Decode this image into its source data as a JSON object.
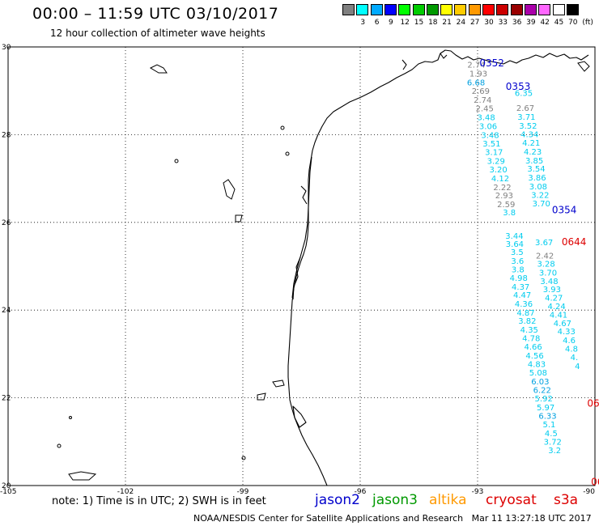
{
  "header": {
    "title": "00:00 – 11:59 UTC 03/10/2017",
    "subtitle": "12 hour collection of altimeter wave heights"
  },
  "legend": {
    "unit": "(ft)",
    "bins": [
      {
        "label": "",
        "color": "#808080"
      },
      {
        "label": "3",
        "color": "#00ffff"
      },
      {
        "label": "6",
        "color": "#00aaff"
      },
      {
        "label": "9",
        "color": "#0000ff"
      },
      {
        "label": "12",
        "color": "#00ff00"
      },
      {
        "label": "15",
        "color": "#00cc00"
      },
      {
        "label": "18",
        "color": "#009900"
      },
      {
        "label": "21",
        "color": "#ffff00"
      },
      {
        "label": "24",
        "color": "#ffcc00"
      },
      {
        "label": "27",
        "color": "#ff9900"
      },
      {
        "label": "30",
        "color": "#ff0000"
      },
      {
        "label": "33",
        "color": "#cc0000"
      },
      {
        "label": "36",
        "color": "#990000"
      },
      {
        "label": "39",
        "color": "#aa00aa"
      },
      {
        "label": "42",
        "color": "#ff66ff"
      },
      {
        "label": "45",
        "color": "#ffffff"
      },
      {
        "label": "70",
        "color": "#000000"
      }
    ]
  },
  "map": {
    "lon_range": [
      -105,
      -90
    ],
    "lat_range": [
      20,
      30
    ],
    "lon_ticks": [
      "-105",
      "-102",
      "-99",
      "-96",
      "-93",
      "-90"
    ],
    "lat_ticks": [
      "30",
      "28",
      "26",
      "24",
      "22",
      "20"
    ],
    "pass_labels": [
      {
        "text": "0352",
        "lon": -92.95,
        "lat": 29.63,
        "color": "#0000cc"
      },
      {
        "text": "0353",
        "lon": -92.28,
        "lat": 29.1,
        "color": "#0000cc"
      },
      {
        "text": "0354",
        "lon": -91.1,
        "lat": 26.28,
        "color": "#0000cc"
      },
      {
        "text": "0644",
        "lon": -90.85,
        "lat": 25.55,
        "color": "#dd0000"
      },
      {
        "text": "064",
        "lon": -90.2,
        "lat": 21.87,
        "color": "#dd0000"
      },
      {
        "text": "06",
        "lon": -90.1,
        "lat": 20.08,
        "color": "#dd0000"
      }
    ],
    "tracks": [
      {
        "name": "track-1",
        "points": [
          {
            "text": "2.74",
            "lon": -93.03,
            "lat": 29.6,
            "color": "#808080"
          },
          {
            "text": "1.93",
            "lon": -92.98,
            "lat": 29.4,
            "color": "#808080"
          },
          {
            "text": "6.68",
            "lon": -93.04,
            "lat": 29.2,
            "color": "#00a0e0"
          },
          {
            "text": "2.69",
            "lon": -92.92,
            "lat": 29.0,
            "color": "#808080"
          },
          {
            "text": "2.74",
            "lon": -92.87,
            "lat": 28.8,
            "color": "#808080"
          },
          {
            "text": "2.45",
            "lon": -92.82,
            "lat": 28.61,
            "color": "#808080"
          },
          {
            "text": "3.48",
            "lon": -92.78,
            "lat": 28.4,
            "color": "#00ccee"
          },
          {
            "text": "3.06",
            "lon": -92.73,
            "lat": 28.2,
            "color": "#00ccee"
          },
          {
            "text": "3.48",
            "lon": -92.68,
            "lat": 28.0,
            "color": "#00ccee"
          },
          {
            "text": "3.51",
            "lon": -92.64,
            "lat": 27.8,
            "color": "#00ccee"
          },
          {
            "text": "3.17",
            "lon": -92.58,
            "lat": 27.61,
            "color": "#00ccee"
          },
          {
            "text": "3.29",
            "lon": -92.53,
            "lat": 27.41,
            "color": "#00ccee"
          },
          {
            "text": "3.20",
            "lon": -92.47,
            "lat": 27.21,
            "color": "#00ccee"
          },
          {
            "text": "4.12",
            "lon": -92.42,
            "lat": 27.01,
            "color": "#00ccee"
          },
          {
            "text": "2.22",
            "lon": -92.37,
            "lat": 26.81,
            "color": "#808080"
          },
          {
            "text": "2.93",
            "lon": -92.32,
            "lat": 26.62,
            "color": "#808080"
          },
          {
            "text": "2.59",
            "lon": -92.27,
            "lat": 26.42,
            "color": "#808080"
          },
          {
            "text": "3.8",
            "lon": -92.19,
            "lat": 26.24,
            "color": "#00ccee"
          },
          {
            "text": "3.44",
            "lon": -92.06,
            "lat": 25.7,
            "color": "#00ccee"
          },
          {
            "text": "3.64",
            "lon": -92.05,
            "lat": 25.52,
            "color": "#00ccee"
          },
          {
            "text": "3.5",
            "lon": -91.99,
            "lat": 25.33,
            "color": "#00ccee"
          },
          {
            "text": "3.6",
            "lon": -91.98,
            "lat": 25.13,
            "color": "#00ccee"
          },
          {
            "text": "3.8",
            "lon": -91.97,
            "lat": 24.94,
            "color": "#00ccee"
          },
          {
            "text": "4.98",
            "lon": -91.95,
            "lat": 24.74,
            "color": "#00ccee"
          },
          {
            "text": "4.37",
            "lon": -91.9,
            "lat": 24.54,
            "color": "#00ccee"
          },
          {
            "text": "4.47",
            "lon": -91.86,
            "lat": 24.35,
            "color": "#00ccee"
          },
          {
            "text": "4.36",
            "lon": -91.82,
            "lat": 24.15,
            "color": "#00ccee"
          },
          {
            "text": "4.87",
            "lon": -91.77,
            "lat": 23.95,
            "color": "#00ccee"
          },
          {
            "text": "3.82",
            "lon": -91.73,
            "lat": 23.76,
            "color": "#00ccee"
          },
          {
            "text": "4.35",
            "lon": -91.68,
            "lat": 23.56,
            "color": "#00ccee"
          },
          {
            "text": "4.78",
            "lon": -91.63,
            "lat": 23.37,
            "color": "#00ccee"
          },
          {
            "text": "4.66",
            "lon": -91.58,
            "lat": 23.17,
            "color": "#00ccee"
          },
          {
            "text": "4.56",
            "lon": -91.54,
            "lat": 22.97,
            "color": "#00ccee"
          },
          {
            "text": "4.83",
            "lon": -91.49,
            "lat": 22.78,
            "color": "#00ccee"
          },
          {
            "text": "5.08",
            "lon": -91.45,
            "lat": 22.58,
            "color": "#00ccee"
          },
          {
            "text": "6.03",
            "lon": -91.4,
            "lat": 22.38,
            "color": "#00a0e0"
          },
          {
            "text": "6.22",
            "lon": -91.35,
            "lat": 22.19,
            "color": "#00a0e0"
          },
          {
            "text": "5.92",
            "lon": -91.31,
            "lat": 21.99,
            "color": "#00ccee"
          },
          {
            "text": "5.97",
            "lon": -91.26,
            "lat": 21.79,
            "color": "#00ccee"
          },
          {
            "text": "6.33",
            "lon": -91.21,
            "lat": 21.6,
            "color": "#00a0e0"
          },
          {
            "text": "5.1",
            "lon": -91.17,
            "lat": 21.4,
            "color": "#00ccee"
          },
          {
            "text": "4.5",
            "lon": -91.12,
            "lat": 21.2,
            "color": "#00ccee"
          },
          {
            "text": "3.72",
            "lon": -91.08,
            "lat": 21.01,
            "color": "#00ccee"
          },
          {
            "text": "3.2",
            "lon": -91.03,
            "lat": 20.81,
            "color": "#00ccee"
          }
        ]
      },
      {
        "name": "track-2",
        "points": [
          {
            "text": "6.35",
            "lon": -91.82,
            "lat": 28.96,
            "color": "#00ccee"
          },
          {
            "text": "2.67",
            "lon": -91.78,
            "lat": 28.62,
            "color": "#808080"
          },
          {
            "text": "3.71",
            "lon": -91.75,
            "lat": 28.41,
            "color": "#00ccee"
          },
          {
            "text": "3.52",
            "lon": -91.71,
            "lat": 28.21,
            "color": "#00ccee"
          },
          {
            "text": "4.34",
            "lon": -91.67,
            "lat": 28.02,
            "color": "#00ccee"
          },
          {
            "text": "4.21",
            "lon": -91.63,
            "lat": 27.82,
            "color": "#00ccee"
          },
          {
            "text": "4.23",
            "lon": -91.59,
            "lat": 27.62,
            "color": "#00ccee"
          },
          {
            "text": "3.85",
            "lon": -91.55,
            "lat": 27.42,
            "color": "#00ccee"
          },
          {
            "text": "3.54",
            "lon": -91.5,
            "lat": 27.23,
            "color": "#00ccee"
          },
          {
            "text": "3.86",
            "lon": -91.48,
            "lat": 27.03,
            "color": "#00ccee"
          },
          {
            "text": "3.08",
            "lon": -91.45,
            "lat": 26.83,
            "color": "#00ccee"
          },
          {
            "text": "3.22",
            "lon": -91.4,
            "lat": 26.63,
            "color": "#00ccee"
          },
          {
            "text": "3.70",
            "lon": -91.37,
            "lat": 26.44,
            "color": "#00ccee"
          },
          {
            "text": "3.67",
            "lon": -91.3,
            "lat": 25.55,
            "color": "#00ccee"
          },
          {
            "text": "2.42",
            "lon": -91.28,
            "lat": 25.25,
            "color": "#808080"
          },
          {
            "text": "3.28",
            "lon": -91.25,
            "lat": 25.06,
            "color": "#00ccee"
          },
          {
            "text": "3.70",
            "lon": -91.2,
            "lat": 24.86,
            "color": "#00ccee"
          },
          {
            "text": "3.48",
            "lon": -91.17,
            "lat": 24.67,
            "color": "#00ccee"
          },
          {
            "text": "3.93",
            "lon": -91.1,
            "lat": 24.48,
            "color": "#00ccee"
          },
          {
            "text": "4.27",
            "lon": -91.05,
            "lat": 24.29,
            "color": "#00ccee"
          },
          {
            "text": "4.24",
            "lon": -90.98,
            "lat": 24.1,
            "color": "#00ccee"
          },
          {
            "text": "4.41",
            "lon": -90.93,
            "lat": 23.9,
            "color": "#00ccee"
          },
          {
            "text": "4.67",
            "lon": -90.83,
            "lat": 23.71,
            "color": "#00ccee"
          },
          {
            "text": "4.33",
            "lon": -90.73,
            "lat": 23.52,
            "color": "#00ccee"
          },
          {
            "text": "4.6",
            "lon": -90.66,
            "lat": 23.32,
            "color": "#00ccee"
          },
          {
            "text": "4.8",
            "lon": -90.6,
            "lat": 23.13,
            "color": "#00ccee"
          },
          {
            "text": "4.",
            "lon": -90.53,
            "lat": 22.93,
            "color": "#00ccee"
          },
          {
            "text": "4",
            "lon": -90.45,
            "lat": 22.73,
            "color": "#00ccee"
          }
        ]
      }
    ]
  },
  "footer": {
    "note": "note: 1) Time is in UTC; 2) SWH is in feet",
    "satellites": [
      {
        "label": "jason2",
        "color": "#0000cc"
      },
      {
        "label": "jason3",
        "color": "#009900"
      },
      {
        "label": "altika",
        "color": "#ff9900"
      },
      {
        "label": "cryosat",
        "color": "#dd0000"
      },
      {
        "label": "s3a",
        "color": "#dd0000"
      }
    ],
    "credit": "NOAA/NESDIS Center for Satellite Applications and Research   Mar 11 13:27:18 UTC 2017"
  }
}
